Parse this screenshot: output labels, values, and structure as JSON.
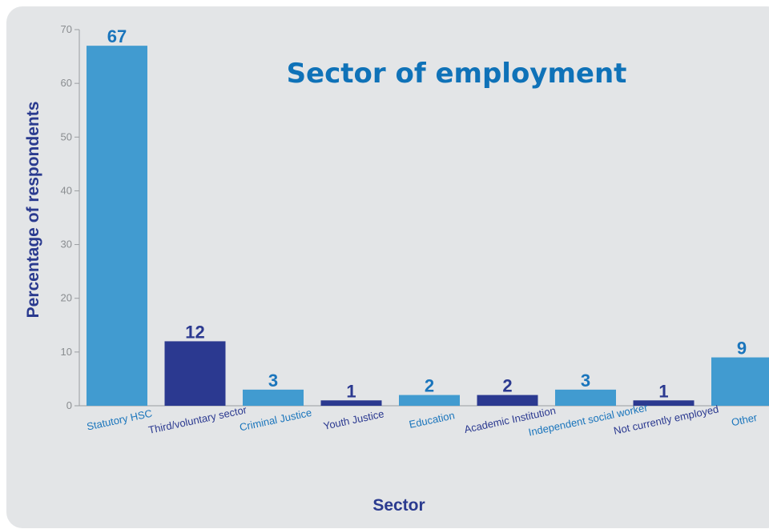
{
  "chart_data": {
    "type": "bar",
    "title": "Sector of employment",
    "xlabel": "Sector",
    "ylabel": "Percentage of respondents",
    "ylim": [
      0,
      70
    ],
    "yticks": [
      0,
      10,
      20,
      30,
      40,
      50,
      60,
      70
    ],
    "categories": [
      "Statutory HSC",
      "Third/voluntary sector",
      "Criminal Justice",
      "Youth Justice",
      "Education",
      "Academic Institution",
      "Independent social worker",
      "Not currently employed",
      "Other"
    ],
    "values": [
      67,
      12,
      3,
      1,
      2,
      2,
      3,
      1,
      9
    ],
    "data_labels": [
      "67",
      "12",
      "3",
      "1",
      "2",
      "2",
      "3",
      "1",
      "9"
    ],
    "grid": false,
    "colors": {
      "light": "#419bd0",
      "dark": "#2b3990",
      "light_text": "#1a75bc",
      "dark_text": "#2b3990",
      "title": "#0f72b8",
      "panel": "#e3e5e7"
    }
  }
}
